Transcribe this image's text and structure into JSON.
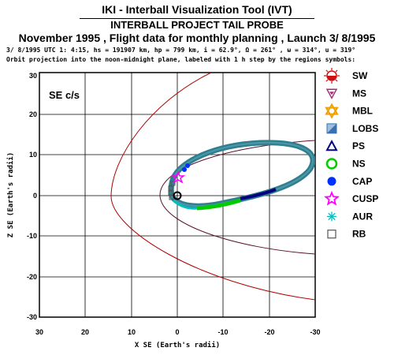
{
  "header": {
    "title": "IKI - Interball Visualization Tool (IVT)",
    "subtitle": "INTERBALL PROJECT TAIL PROBE",
    "mission_line": "November 1995 ,  Flight data for monthly planning ,   Launch  3/ 8/1995",
    "info_line": "3/ 8/1995 UTC  1: 4:15, hs = 191907 km, hp =    799 km, i = 62.9°, Ω = 261° , ω = 314°, u = 319°",
    "orbit_note": "Orbit projection into the noon-midnight plane, labeled with 1 h step by the regions symbols:"
  },
  "plot": {
    "coord_label": "SE c/s",
    "x_axis_label": "X SE (Earth's radii)",
    "y_axis_label": "Z SE (Earth's radii)",
    "x_ticks": [
      "30",
      "20",
      "10",
      "0",
      "-10",
      "-20",
      "-30"
    ],
    "y_ticks": [
      "30",
      "20",
      "10",
      "0",
      "-10",
      "-20",
      "-30"
    ]
  },
  "legend": [
    {
      "label": "SW",
      "icon": "sun-icon",
      "color": "#d01010"
    },
    {
      "label": "MS",
      "icon": "triangle-down-icon",
      "color": "#a0307a"
    },
    {
      "label": "MBL",
      "icon": "star-of-david-icon",
      "color": "#f0a000"
    },
    {
      "label": "LOBS",
      "icon": "half-square-icon",
      "color": "#3a70b0"
    },
    {
      "label": "PS",
      "icon": "triangle-up-icon",
      "color": "#000080"
    },
    {
      "label": "NS",
      "icon": "circle-icon",
      "color": "#00cc00"
    },
    {
      "label": "CAP",
      "icon": "filled-circle-icon",
      "color": "#0030ff"
    },
    {
      "label": "CUSP",
      "icon": "star-icon",
      "color": "#ff00ff"
    },
    {
      "label": "AUR",
      "icon": "asterisk-icon",
      "color": "#00c0c0"
    },
    {
      "label": "RB",
      "icon": "square-icon",
      "color": "#555555"
    }
  ],
  "colors": {
    "bowshock": "#b00000",
    "magnetopause": "#5a1030",
    "orbit": "#2f7f8f"
  }
}
